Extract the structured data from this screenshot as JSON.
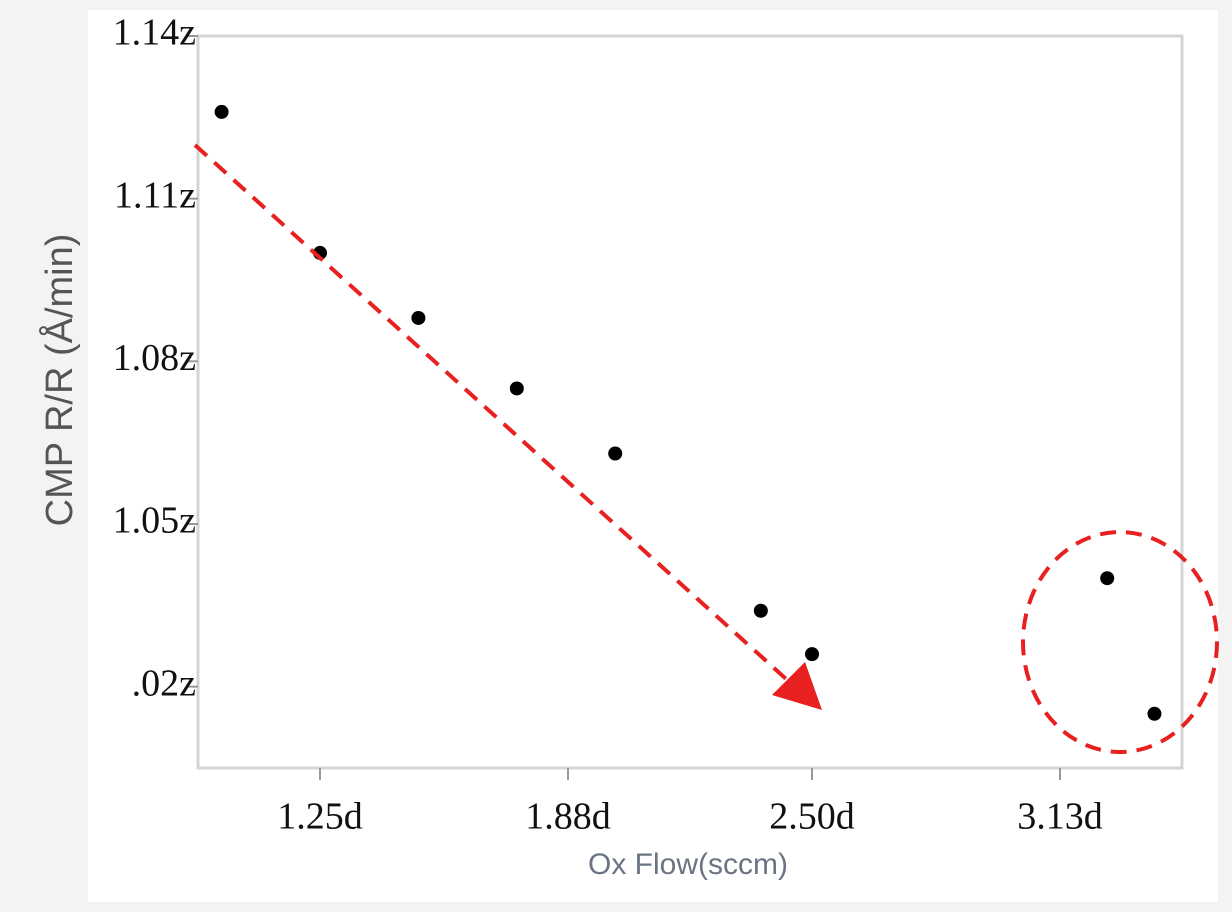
{
  "chart_data": {
    "type": "scatter",
    "y_label": "CMP R/R (Å/min)",
    "x_label": "Ox Flow(sccm)",
    "x": [
      1.0,
      1.25,
      1.5,
      1.75,
      2.0,
      2.37,
      2.5,
      3.25,
      3.37
    ],
    "values": [
      1.126,
      1.1,
      1.088,
      1.075,
      1.063,
      1.034,
      1.026,
      1.04,
      1.015
    ],
    "color": "#000000",
    "xlim": [
      0.94,
      3.44
    ],
    "ylim": [
      1.005,
      1.14
    ],
    "xticks": [
      {
        "value": 1.25,
        "label": "1.25d"
      },
      {
        "value": 1.88,
        "label": "1.88d"
      },
      {
        "value": 2.5,
        "label": "2.50d"
      },
      {
        "value": 3.13,
        "label": "3.13d"
      }
    ],
    "yticks": [
      {
        "value": 1.14,
        "label": "1.14z"
      },
      {
        "value": 1.11,
        "label": "1.11z"
      },
      {
        "value": 1.08,
        "label": "1.08z"
      },
      {
        "value": 1.05,
        "label": "1.05z"
      },
      {
        "value": 1.02,
        "label": ".02z"
      }
    ]
  }
}
